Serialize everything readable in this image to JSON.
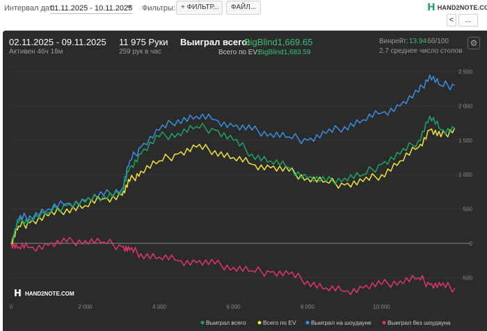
{
  "toolbar": {
    "interval_label": "Интервал дат:",
    "interval_value": "01.11.2025 - 10.11.2025",
    "filters_label": "Фильтры:",
    "filter_button": "+ ФИЛЬТР...",
    "file_button": "ФАЙЛ...",
    "logo_text": "HAND2NOTE.COM",
    "nav_back": "<",
    "nav_more": "..."
  },
  "summary": {
    "date_range": "02.11.2025 - 09.11.2025",
    "active": "Активен 46ч 18м",
    "hands": "11 975 Руки",
    "hands_per_hour": "259 рук в час",
    "won_total_label": "Выиграл всего:",
    "won_total_value": "BigBlind1,669.65",
    "ev_total_label": "Всего по EV:",
    "ev_total_value": "BigBlind1,683.59",
    "winrate_label": "Винрейт:",
    "winrate_value": "13.94",
    "winrate_unit": "бб/100",
    "avg_tables": "2.7 среднее число столов"
  },
  "watermark": "HAND2NOTE.COM",
  "colors": {
    "won": "#1fa463",
    "ev": "#f2e63a",
    "showdown": "#3b8fe0",
    "non_showdown": "#e0356e",
    "background": "#2b2b2b"
  },
  "chart_data": {
    "type": "line",
    "xlim": [
      0,
      12000
    ],
    "ylim": [
      -750,
      2500
    ],
    "x_ticks": [
      "0",
      "2 000",
      "4 000",
      "6 000",
      "8 000",
      "10 000"
    ],
    "x_tick_values": [
      0,
      2000,
      4000,
      6000,
      8000,
      10000
    ],
    "y_ticks": [
      "2 500",
      "2 000",
      "1 500",
      "1 000",
      "500",
      "0",
      "-500"
    ],
    "y_tick_values": [
      2500,
      2000,
      1500,
      1000,
      500,
      0,
      -500
    ],
    "x": [
      0,
      200,
      500,
      1000,
      1500,
      2000,
      2500,
      3000,
      3200,
      3500,
      4000,
      4500,
      5000,
      5500,
      6000,
      6500,
      7000,
      7500,
      8000,
      8500,
      9000,
      9500,
      10000,
      10500,
      11000,
      11300,
      11600,
      11975
    ],
    "series": [
      {
        "name": "Выиграл всего",
        "color": "#1fa463",
        "values": [
          0,
          300,
          350,
          450,
          550,
          600,
          700,
          750,
          1100,
          1300,
          1550,
          1600,
          1700,
          1650,
          1500,
          1300,
          1200,
          1100,
          950,
          900,
          950,
          1000,
          1150,
          1300,
          1500,
          1850,
          1650,
          1670
        ]
      },
      {
        "name": "Всего по EV",
        "color": "#f2e63a",
        "values": [
          0,
          250,
          300,
          400,
          500,
          550,
          650,
          700,
          900,
          1050,
          1200,
          1300,
          1400,
          1350,
          1250,
          1150,
          1100,
          1050,
          950,
          900,
          850,
          900,
          1000,
          1200,
          1400,
          1650,
          1550,
          1680
        ]
      },
      {
        "name": "Выиграл на шоудауне",
        "color": "#3b8fe0",
        "values": [
          0,
          350,
          400,
          500,
          580,
          620,
          700,
          800,
          1200,
          1400,
          1650,
          1800,
          1850,
          1800,
          1700,
          1650,
          1600,
          1550,
          1500,
          1600,
          1700,
          1800,
          1900,
          2000,
          2200,
          2450,
          2300,
          2300
        ]
      },
      {
        "name": "Выиграл без шоудауна",
        "color": "#e0356e",
        "values": [
          0,
          -50,
          -60,
          -30,
          20,
          40,
          20,
          -50,
          -100,
          -150,
          -200,
          -250,
          -280,
          -300,
          -350,
          -400,
          -420,
          -450,
          -550,
          -650,
          -700,
          -650,
          -600,
          -550,
          -500,
          -600,
          -620,
          -650
        ]
      }
    ]
  }
}
